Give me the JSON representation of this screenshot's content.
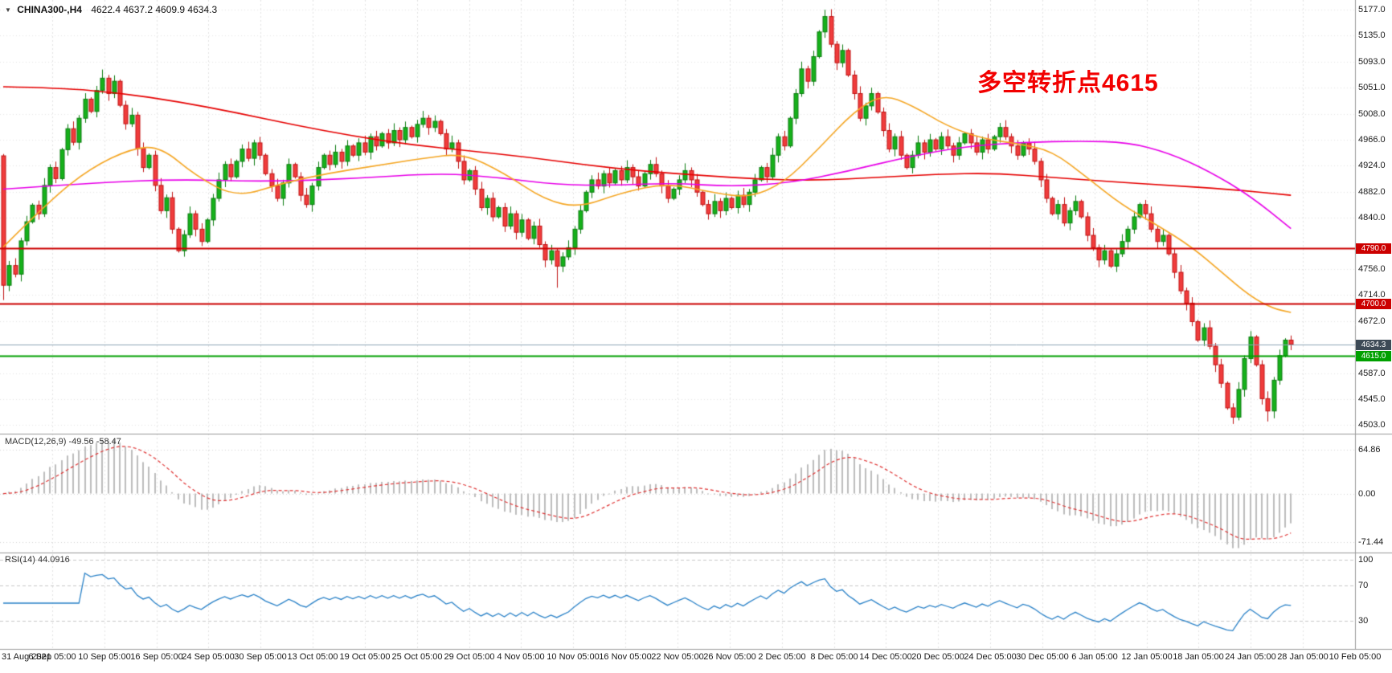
{
  "header": {
    "dropdown_icon": "▼",
    "symbol_period": "CHINA300-,H4",
    "ohlc": "4622.4 4637.2 4609.9 4634.3"
  },
  "annotation": {
    "text": "多空转折点4615",
    "color": "#f20000"
  },
  "chart_data": {
    "type": "candlestick",
    "symbol": "CHINA300-",
    "timeframe": "H4",
    "main": {
      "scale": {
        "min": 4497,
        "max": 5185
      },
      "price_axis_labels": [
        "5177.0",
        "5135.0",
        "5093.0",
        "5051.0",
        "5008.0",
        "4966.0",
        "4924.0",
        "4882.0",
        "4840.0",
        "4756.0",
        "4714.0",
        "4672.0",
        "4587.0",
        "4545.0",
        "4503.0"
      ],
      "price_levels": [
        {
          "value": 4790.0,
          "label": "4790.0",
          "color": "#cc0000",
          "kind": "hline"
        },
        {
          "value": 4700.0,
          "label": "4700.0",
          "color": "#cc0000",
          "kind": "hline"
        },
        {
          "value": 4634.3,
          "label": "4634.3",
          "color": "#3d4a56",
          "kind": "current"
        },
        {
          "value": 4615.0,
          "label": "4615.0",
          "color": "#00a000",
          "kind": "hline-green"
        }
      ],
      "first_open": 4940,
      "candles_close": [
        4730,
        4762,
        4748,
        4802,
        4833,
        4860,
        4846,
        4892,
        4921,
        4903,
        4950,
        4984,
        4962,
        5001,
        5032,
        5012,
        5046,
        5066,
        5041,
        5061,
        5022,
        4992,
        5006,
        4952,
        4921,
        4941,
        4892,
        4851,
        4872,
        4821,
        4786,
        4812,
        4846,
        4821,
        4801,
        4836,
        4871,
        4901,
        4926,
        4906,
        4931,
        4951,
        4936,
        4961,
        4941,
        4911,
        4891,
        4871,
        4896,
        4926,
        4906,
        4876,
        4861,
        4891,
        4921,
        4941,
        4926,
        4946,
        4931,
        4956,
        4941,
        4961,
        4946,
        4971,
        4956,
        4976,
        4961,
        4981,
        4966,
        4986,
        4971,
        4991,
        5001,
        4986,
        4996,
        4976,
        4951,
        4961,
        4931,
        4901,
        4916,
        4886,
        4856,
        4871,
        4841,
        4856,
        4826,
        4846,
        4816,
        4836,
        4806,
        4826,
        4796,
        4771,
        4786,
        4761,
        4776,
        4791,
        4821,
        4851,
        4881,
        4901,
        4891,
        4911,
        4896,
        4916,
        4901,
        4921,
        4906,
        4891,
        4911,
        4926,
        4911,
        4891,
        4871,
        4886,
        4901,
        4916,
        4901,
        4881,
        4861,
        4846,
        4866,
        4851,
        4871,
        4856,
        4876,
        4861,
        4881,
        4901,
        4921,
        4906,
        4941,
        4971,
        4956,
        5001,
        5041,
        5081,
        5061,
        5101,
        5141,
        5166,
        5121,
        5091,
        5111,
        5071,
        5041,
        5001,
        5021,
        5041,
        5011,
        4981,
        4951,
        4971,
        4941,
        4921,
        4941,
        4961,
        4946,
        4966,
        4951,
        4971,
        4956,
        4941,
        4961,
        4976,
        4961,
        4946,
        4966,
        4951,
        4971,
        4986,
        4971,
        4956,
        4941,
        4961,
        4951,
        4931,
        4901,
        4871,
        4846,
        4861,
        4831,
        4851,
        4866,
        4841,
        4811,
        4791,
        4771,
        4786,
        4761,
        4781,
        4801,
        4821,
        4841,
        4861,
        4846,
        4821,
        4801,
        4811,
        4781,
        4751,
        4721,
        4701,
        4671,
        4641,
        4661,
        4631,
        4601,
        4571,
        4531,
        4516,
        4561,
        4611,
        4646,
        4601,
        4546,
        4526,
        4576,
        4616,
        4641,
        4634.3
      ],
      "extremes": {
        "0": {
          "low": 4706
        },
        "17": {
          "high": 5080
        },
        "95": {
          "low": 4726
        },
        "141": {
          "high": 5177
        },
        "211": {
          "low": 4505
        },
        "217": {
          "low": 4509
        }
      },
      "candle_colors": {
        "up_fill": "#16b11b",
        "up_stroke": "#0c7c10",
        "down_fill": "#f03c3c",
        "down_stroke": "#c01414"
      },
      "moving_averages": [
        {
          "name": "slow-ma",
          "color": "#e60000",
          "points": [
            [
              0,
              5052
            ],
            [
              10,
              5050
            ],
            [
              20,
              5042
            ],
            [
              30,
              5028
            ],
            [
              40,
              5010
            ],
            [
              50,
              4990
            ],
            [
              60,
              4972
            ],
            [
              70,
              4958
            ],
            [
              80,
              4948
            ],
            [
              90,
              4938
            ],
            [
              100,
              4925
            ],
            [
              110,
              4915
            ],
            [
              120,
              4908
            ],
            [
              130,
              4902
            ],
            [
              140,
              4900
            ],
            [
              150,
              4905
            ],
            [
              160,
              4910
            ],
            [
              170,
              4912
            ],
            [
              180,
              4905
            ],
            [
              190,
              4898
            ],
            [
              200,
              4892
            ],
            [
              210,
              4886
            ],
            [
              221,
              4876
            ]
          ]
        },
        {
          "name": "medium-ma",
          "color": "#e800e8",
          "points": [
            [
              0,
              4886
            ],
            [
              15,
              4896
            ],
            [
              30,
              4902
            ],
            [
              45,
              4898
            ],
            [
              60,
              4903
            ],
            [
              75,
              4912
            ],
            [
              85,
              4905
            ],
            [
              95,
              4893
            ],
            [
              105,
              4892
            ],
            [
              115,
              4896
            ],
            [
              125,
              4890
            ],
            [
              135,
              4896
            ],
            [
              145,
              4915
            ],
            [
              155,
              4938
            ],
            [
              165,
              4955
            ],
            [
              175,
              4962
            ],
            [
              185,
              4964
            ],
            [
              193,
              4962
            ],
            [
              200,
              4945
            ],
            [
              207,
              4915
            ],
            [
              214,
              4875
            ],
            [
              221,
              4822
            ]
          ]
        },
        {
          "name": "fast-ma",
          "color": "#f5a623",
          "points": [
            [
              0,
              4792
            ],
            [
              8,
              4868
            ],
            [
              15,
              4920
            ],
            [
              22,
              4952
            ],
            [
              27,
              4955
            ],
            [
              33,
              4908
            ],
            [
              40,
              4872
            ],
            [
              48,
              4896
            ],
            [
              56,
              4912
            ],
            [
              64,
              4924
            ],
            [
              72,
              4936
            ],
            [
              79,
              4944
            ],
            [
              86,
              4912
            ],
            [
              93,
              4868
            ],
            [
              99,
              4856
            ],
            [
              106,
              4880
            ],
            [
              114,
              4896
            ],
            [
              122,
              4880
            ],
            [
              128,
              4872
            ],
            [
              134,
              4896
            ],
            [
              140,
              4952
            ],
            [
              146,
              5012
            ],
            [
              151,
              5040
            ],
            [
              156,
              5022
            ],
            [
              162,
              4988
            ],
            [
              168,
              4968
            ],
            [
              174,
              4960
            ],
            [
              180,
              4948
            ],
            [
              186,
              4905
            ],
            [
              192,
              4860
            ],
            [
              198,
              4828
            ],
            [
              204,
              4792
            ],
            [
              209,
              4752
            ],
            [
              214,
              4712
            ],
            [
              218,
              4692
            ],
            [
              221,
              4686
            ]
          ]
        }
      ]
    },
    "macd": {
      "label": "MACD(12,26,9) -49.56 -58.47",
      "params": [
        12,
        26,
        9
      ],
      "values_shown": {
        "macd": -49.56,
        "signal": -58.47
      },
      "axis_labels": [
        "64.86",
        "0.00",
        "-71.44"
      ],
      "scale": {
        "min": -82,
        "max": 75
      },
      "colors": {
        "histogram": "#bdbdbd",
        "signal": "#e03434"
      }
    },
    "rsi": {
      "label": "RSI(14) 44.0916",
      "period": 14,
      "value_shown": 44.0916,
      "axis_labels": [
        "100",
        "70",
        "30"
      ],
      "levels": [
        70,
        30
      ],
      "scale": {
        "min": 0,
        "max": 100
      },
      "colors": {
        "line": "#2a82c8"
      }
    },
    "time_axis_labels": [
      "31 Aug 2021",
      "6 Sep 05:00",
      "10 Sep 05:00",
      "16 Sep 05:00",
      "24 Sep 05:00",
      "30 Sep 05:00",
      "13 Oct 05:00",
      "19 Oct 05:00",
      "25 Oct 05:00",
      "29 Oct 05:00",
      "4 Nov 05:00",
      "10 Nov 05:00",
      "16 Nov 05:00",
      "22 Nov 05:00",
      "26 Nov 05:00",
      "2 Dec 05:00",
      "8 Dec 05:00",
      "14 Dec 05:00",
      "20 Dec 05:00",
      "24 Dec 05:00",
      "30 Dec 05:00",
      "6 Jan 05:00",
      "12 Jan 05:00",
      "18 Jan 05:00",
      "24 Jan 05:00",
      "28 Jan 05:00",
      "10 Feb 05:00"
    ]
  }
}
